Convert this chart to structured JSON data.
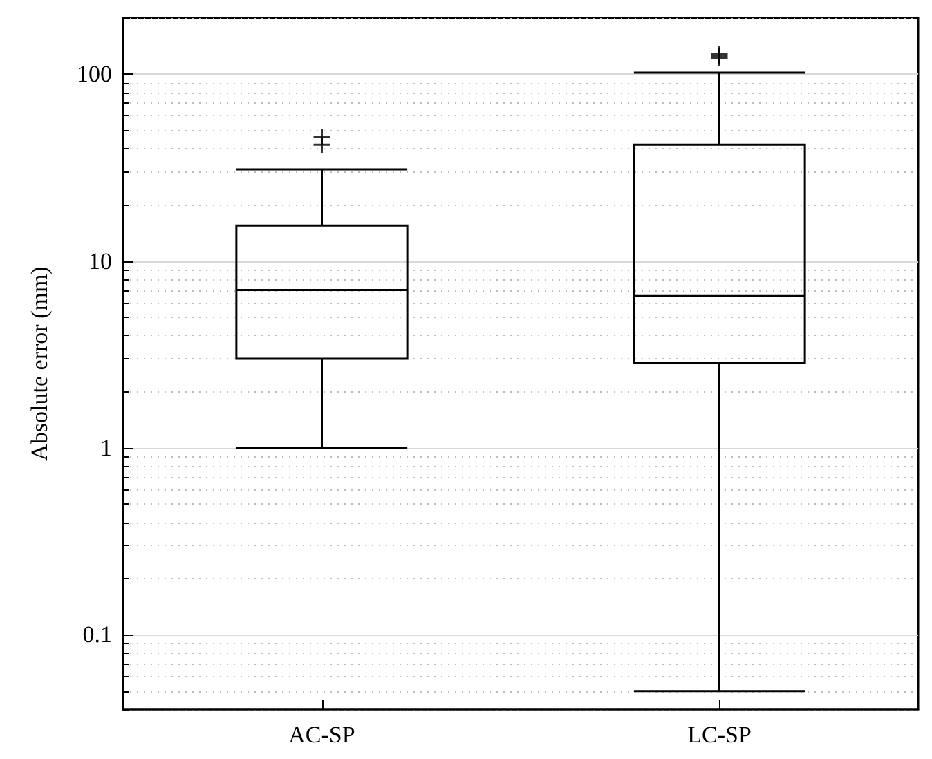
{
  "chart_data": {
    "type": "box",
    "ylabel": "Absolute error (mm)",
    "categories": [
      "AC-SP",
      "LC-SP"
    ],
    "boxes": [
      {
        "low": 1,
        "q1": 3,
        "median": 7,
        "q3": 15.5,
        "high": 31,
        "outliers": [
          42,
          46
        ]
      },
      {
        "low": 0.05,
        "q1": 2.86,
        "median": 6.5,
        "q3": 42,
        "high": 102,
        "outliers": [
          122,
          125,
          128
        ]
      }
    ],
    "color": "#000000",
    "log": "y",
    "ylim": [
      0.04,
      200
    ],
    "yticks": [
      0.1,
      1,
      10,
      100
    ],
    "grid": true
  }
}
